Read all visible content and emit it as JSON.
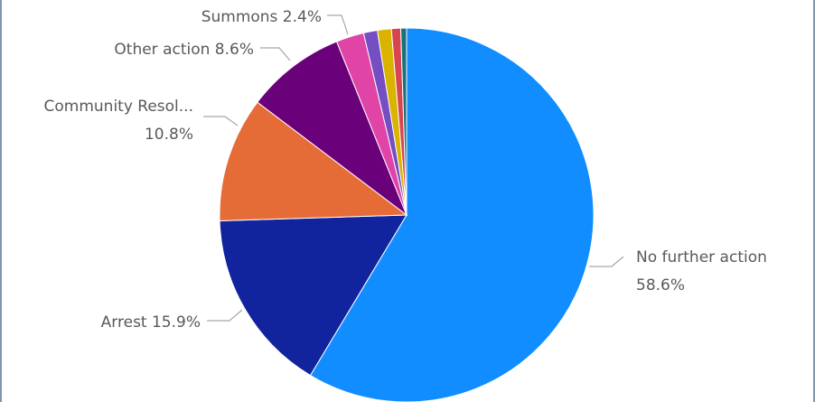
{
  "chart_data": {
    "type": "pie",
    "title": "",
    "slices": [
      {
        "name": "No further action",
        "value": 58.6,
        "color": "#118dff",
        "label_lines": [
          "No further action",
          "58.6%"
        ]
      },
      {
        "name": "Arrest",
        "value": 15.9,
        "color": "#12239e",
        "label_lines": [
          "Arrest 15.9%"
        ]
      },
      {
        "name": "Community Resol...",
        "value": 10.8,
        "color": "#e66c37",
        "label_lines": [
          "Community Resol...",
          "10.8%"
        ]
      },
      {
        "name": "Other action",
        "value": 8.6,
        "color": "#6b007b",
        "label_lines": [
          "Other action 8.6%"
        ]
      },
      {
        "name": "Summons",
        "value": 2.4,
        "color": "#e044a7",
        "label_lines": [
          "Summons 2.4%"
        ]
      },
      {
        "name": "",
        "value": 1.2,
        "color": "#744ec2",
        "label_lines": []
      },
      {
        "name": "",
        "value": 1.2,
        "color": "#d9b300",
        "label_lines": []
      },
      {
        "name": "",
        "value": 0.8,
        "color": "#d64550",
        "label_lines": []
      },
      {
        "name": "",
        "value": 0.5,
        "color": "#197278",
        "label_lines": []
      }
    ]
  }
}
